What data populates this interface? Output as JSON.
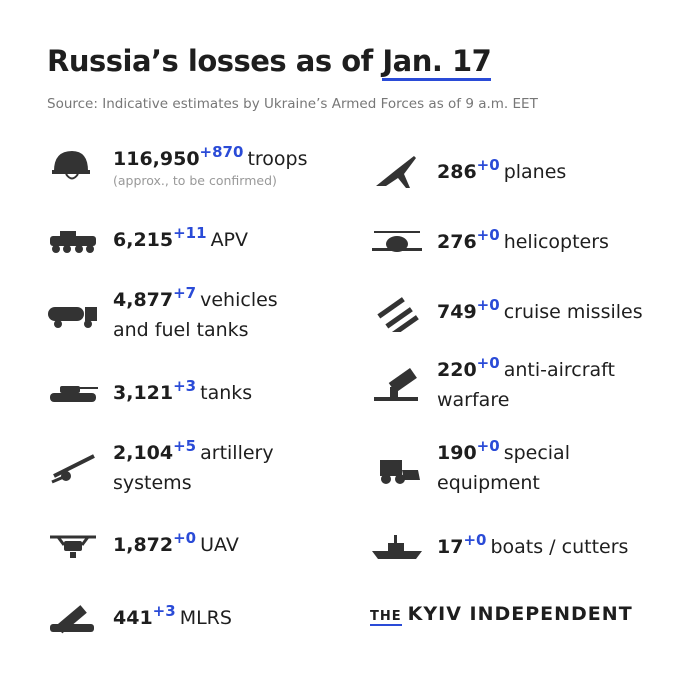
{
  "header": {
    "title_prefix": "Russia’s losses as of",
    "title_date": "Jan. 17",
    "source": "Source: Indicative estimates by Ukraine’s Armed Forces as of 9 a.m. EET"
  },
  "left": [
    {
      "value": "116,950",
      "change": "+870",
      "label": "troops",
      "note": "(approx., to be confirmed)"
    },
    {
      "value": "6,215",
      "change": "+11",
      "label": "APV"
    },
    {
      "value": "4,877",
      "change": "+7",
      "label": "vehicles and fuel tanks"
    },
    {
      "value": "3,121",
      "change": "+3",
      "label": "tanks"
    },
    {
      "value": "2,104",
      "change": "+5",
      "label": "artillery systems"
    },
    {
      "value": "1,872",
      "change": "+0",
      "label": "UAV"
    },
    {
      "value": "441",
      "change": "+3",
      "label": "MLRS"
    }
  ],
  "right": [
    {
      "value": "286",
      "change": "+0",
      "label": "planes"
    },
    {
      "value": "276",
      "change": "+0",
      "label": "helicopters"
    },
    {
      "value": "749",
      "change": "+0",
      "label": "cruise missiles"
    },
    {
      "value": "220",
      "change": "+0",
      "label": "anti-aircraft warfare"
    },
    {
      "value": "190",
      "change": "+0",
      "label": "special equipment"
    },
    {
      "value": "17",
      "change": "+0",
      "label": "boats / cutters"
    }
  ],
  "brand": {
    "the": "THE",
    "name": "KYIV INDEPENDENT"
  }
}
